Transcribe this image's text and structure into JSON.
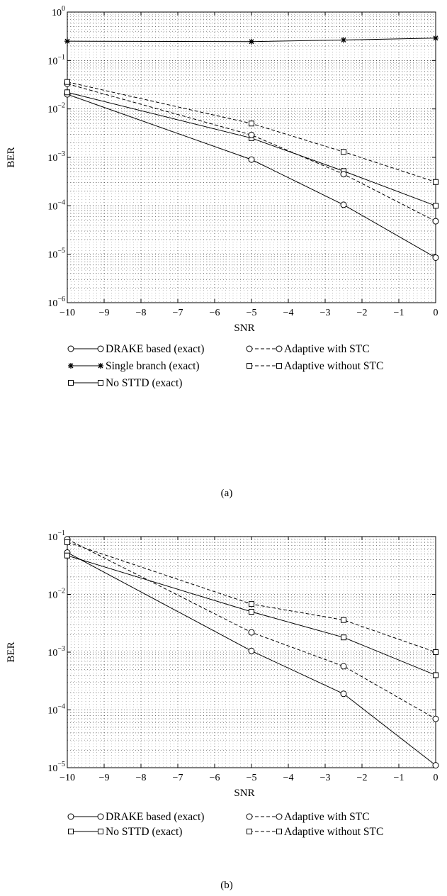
{
  "chart_data": [
    {
      "type": "line",
      "panel_label": "(a)",
      "xlabel": "SNR",
      "ylabel": "BER",
      "y_scale": "log",
      "xlim": [
        -10,
        0
      ],
      "ylim": [
        1e-06,
        1
      ],
      "grid": true,
      "legend_position": "bottom",
      "x_ticks": [
        "−10",
        "−9",
        "−8",
        "−7",
        "−6",
        "−5",
        "−4",
        "−3",
        "−2",
        "−1",
        "0"
      ],
      "y_ticks": [
        {
          "base": "10",
          "exp": "0"
        },
        {
          "base": "10",
          "exp": "−1"
        },
        {
          "base": "10",
          "exp": "−2"
        },
        {
          "base": "10",
          "exp": "−3"
        },
        {
          "base": "10",
          "exp": "−4"
        },
        {
          "base": "10",
          "exp": "−5"
        },
        {
          "base": "10",
          "exp": "−6"
        }
      ],
      "x": [
        -10,
        -5,
        -2.5,
        0
      ],
      "series": [
        {
          "name": "DRAKE based (exact)",
          "marker": "circle",
          "line": "solid",
          "values": [
            0.02,
            0.0009,
            0.000105,
            8.5e-06
          ]
        },
        {
          "name": "Single branch (exact)",
          "marker": "star",
          "line": "solid",
          "values": [
            0.25,
            0.245,
            0.265,
            0.29
          ]
        },
        {
          "name": "No STTD (exact)",
          "marker": "square",
          "line": "solid",
          "values": [
            0.022,
            0.0025,
            0.00052,
            0.0001
          ]
        },
        {
          "name": "Adaptive with STC",
          "marker": "circle",
          "line": "dashed",
          "values": [
            0.033,
            0.0029,
            0.00045,
            4.8e-05
          ]
        },
        {
          "name": "Adaptive without STC",
          "marker": "square",
          "line": "dashed",
          "values": [
            0.036,
            0.005,
            0.0013,
            0.00031
          ]
        }
      ]
    },
    {
      "type": "line",
      "panel_label": "(b)",
      "xlabel": "SNR",
      "ylabel": "BER",
      "y_scale": "log",
      "xlim": [
        -10,
        0
      ],
      "ylim": [
        1e-05,
        0.1
      ],
      "grid": true,
      "legend_position": "bottom",
      "x_ticks": [
        "−10",
        "−9",
        "−8",
        "−7",
        "−6",
        "−5",
        "−4",
        "−3",
        "−2",
        "−1",
        "0"
      ],
      "y_ticks": [
        {
          "base": "10",
          "exp": "−1"
        },
        {
          "base": "10",
          "exp": "−2"
        },
        {
          "base": "10",
          "exp": "−3"
        },
        {
          "base": "10",
          "exp": "−4"
        },
        {
          "base": "10",
          "exp": "−5"
        }
      ],
      "x": [
        -10,
        -5,
        -2.5,
        0
      ],
      "series": [
        {
          "name": "DRAKE based (exact)",
          "marker": "circle",
          "line": "solid",
          "values": [
            0.053,
            0.00105,
            0.00019,
            1.1e-05
          ]
        },
        {
          "name": "No STTD (exact)",
          "marker": "square",
          "line": "solid",
          "values": [
            0.047,
            0.005,
            0.0018,
            0.0004
          ]
        },
        {
          "name": "Adaptive with STC",
          "marker": "circle",
          "line": "dashed",
          "values": [
            0.09,
            0.0022,
            0.00057,
            7e-05
          ]
        },
        {
          "name": "Adaptive without STC",
          "marker": "square",
          "line": "dashed",
          "values": [
            0.08,
            0.0068,
            0.0036,
            0.001
          ]
        }
      ]
    }
  ]
}
